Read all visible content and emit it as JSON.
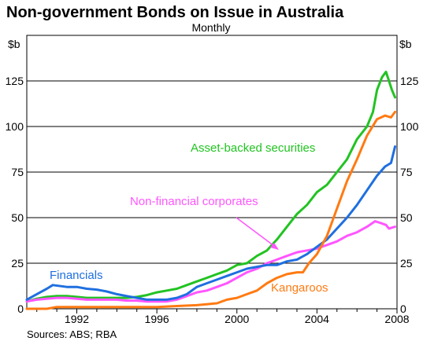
{
  "chart_data": {
    "type": "line",
    "title": "Non-government Bonds on Issue in Australia",
    "subtitle": "Monthly",
    "y_unit_left": "$b",
    "y_unit_right": "$b",
    "ylim": [
      0,
      150
    ],
    "y_ticks": [
      0,
      25,
      50,
      75,
      100,
      125
    ],
    "x_range": [
      1989.5,
      2008
    ],
    "x_ticks": [
      1992,
      1996,
      2000,
      2004,
      2008
    ],
    "grid": true,
    "source": "Sources: ABS; RBA",
    "colors": {
      "Asset-backed securities": "#22c322",
      "Non-financial corporates": "#ff55ff",
      "Financials": "#1f6fe0",
      "Kangaroos": "#ff7a12"
    },
    "series": [
      {
        "name": "Asset-backed securities",
        "points": [
          [
            1989.5,
            4
          ],
          [
            1990.0,
            5.5
          ],
          [
            1990.5,
            6.5
          ],
          [
            1991.0,
            7
          ],
          [
            1991.5,
            7
          ],
          [
            1992.0,
            6.5
          ],
          [
            1992.5,
            6
          ],
          [
            1993.0,
            6
          ],
          [
            1993.5,
            6
          ],
          [
            1994.0,
            6
          ],
          [
            1994.5,
            6
          ],
          [
            1995.0,
            6.5
          ],
          [
            1995.5,
            7.5
          ],
          [
            1996.0,
            9
          ],
          [
            1996.5,
            10
          ],
          [
            1997.0,
            11
          ],
          [
            1997.5,
            13
          ],
          [
            1998.0,
            15
          ],
          [
            1998.5,
            17
          ],
          [
            1999.0,
            19
          ],
          [
            1999.5,
            21
          ],
          [
            2000.0,
            24
          ],
          [
            2000.5,
            25
          ],
          [
            2001.0,
            29
          ],
          [
            2001.5,
            32
          ],
          [
            2002.0,
            38
          ],
          [
            2002.5,
            45
          ],
          [
            2003.0,
            52
          ],
          [
            2003.5,
            57
          ],
          [
            2004.0,
            64
          ],
          [
            2004.5,
            68
          ],
          [
            2005.0,
            75
          ],
          [
            2005.5,
            82
          ],
          [
            2006.0,
            93
          ],
          [
            2006.5,
            100
          ],
          [
            2006.8,
            108
          ],
          [
            2007.0,
            120
          ],
          [
            2007.25,
            127
          ],
          [
            2007.45,
            130
          ],
          [
            2007.6,
            125
          ],
          [
            2007.75,
            120
          ],
          [
            2007.9,
            116
          ]
        ]
      },
      {
        "name": "Non-financial corporates",
        "points": [
          [
            1989.5,
            4
          ],
          [
            1990.0,
            5
          ],
          [
            1990.5,
            5.5
          ],
          [
            1991.0,
            6
          ],
          [
            1991.5,
            6
          ],
          [
            1992.0,
            5.5
          ],
          [
            1992.5,
            5
          ],
          [
            1993.0,
            5
          ],
          [
            1993.5,
            5
          ],
          [
            1994.0,
            5
          ],
          [
            1994.5,
            4.5
          ],
          [
            1995.0,
            4.5
          ],
          [
            1995.5,
            4
          ],
          [
            1996.0,
            4
          ],
          [
            1996.5,
            4
          ],
          [
            1997.0,
            5
          ],
          [
            1997.5,
            7
          ],
          [
            1998.0,
            9
          ],
          [
            1998.5,
            10
          ],
          [
            1999.0,
            12
          ],
          [
            1999.5,
            14
          ],
          [
            2000.0,
            17
          ],
          [
            2000.5,
            20
          ],
          [
            2001.0,
            22
          ],
          [
            2001.5,
            25
          ],
          [
            2002.0,
            27
          ],
          [
            2002.5,
            29
          ],
          [
            2003.0,
            31
          ],
          [
            2003.5,
            32
          ],
          [
            2004.0,
            33
          ],
          [
            2004.5,
            35
          ],
          [
            2005.0,
            37
          ],
          [
            2005.5,
            40
          ],
          [
            2006.0,
            42
          ],
          [
            2006.5,
            45
          ],
          [
            2006.9,
            48
          ],
          [
            2007.2,
            47
          ],
          [
            2007.45,
            46
          ],
          [
            2007.6,
            44
          ],
          [
            2007.9,
            45
          ]
        ]
      },
      {
        "name": "Financials",
        "points": [
          [
            1989.5,
            5
          ],
          [
            1990.0,
            8
          ],
          [
            1990.5,
            11
          ],
          [
            1990.8,
            13
          ],
          [
            1991.5,
            12
          ],
          [
            1992.0,
            12
          ],
          [
            1992.5,
            11
          ],
          [
            1993.0,
            10.5
          ],
          [
            1993.5,
            9.5
          ],
          [
            1994.0,
            8
          ],
          [
            1994.5,
            7
          ],
          [
            1995.0,
            6
          ],
          [
            1995.5,
            5
          ],
          [
            1996.0,
            5
          ],
          [
            1996.5,
            5
          ],
          [
            1997.0,
            6
          ],
          [
            1997.5,
            8
          ],
          [
            1998.0,
            12
          ],
          [
            1998.5,
            14
          ],
          [
            1999.0,
            16
          ],
          [
            1999.5,
            18
          ],
          [
            2000.0,
            20
          ],
          [
            2000.5,
            22
          ],
          [
            2001.0,
            23
          ],
          [
            2001.5,
            24
          ],
          [
            2002.0,
            24
          ],
          [
            2002.5,
            26
          ],
          [
            2003.0,
            27
          ],
          [
            2003.5,
            30
          ],
          [
            2004.0,
            34
          ],
          [
            2004.5,
            38
          ],
          [
            2005.0,
            44
          ],
          [
            2005.5,
            50
          ],
          [
            2006.0,
            57
          ],
          [
            2006.5,
            65
          ],
          [
            2007.0,
            73
          ],
          [
            2007.4,
            78
          ],
          [
            2007.7,
            80
          ],
          [
            2007.9,
            89
          ]
        ]
      },
      {
        "name": "Kangaroos",
        "points": [
          [
            1989.5,
            0
          ],
          [
            1990.5,
            0
          ],
          [
            1991.0,
            1
          ],
          [
            1991.5,
            1
          ],
          [
            1992.0,
            1
          ],
          [
            1993.0,
            1
          ],
          [
            1994.0,
            1
          ],
          [
            1995.0,
            1
          ],
          [
            1996.0,
            1
          ],
          [
            1997.0,
            1.5
          ],
          [
            1998.0,
            2
          ],
          [
            1999.0,
            3
          ],
          [
            1999.5,
            5
          ],
          [
            2000.0,
            6
          ],
          [
            2000.5,
            8
          ],
          [
            2001.0,
            10
          ],
          [
            2001.5,
            14
          ],
          [
            2002.0,
            17
          ],
          [
            2002.5,
            19
          ],
          [
            2003.0,
            20
          ],
          [
            2003.3,
            20
          ],
          [
            2003.6,
            25
          ],
          [
            2004.0,
            30
          ],
          [
            2004.5,
            40
          ],
          [
            2005.0,
            55
          ],
          [
            2005.5,
            70
          ],
          [
            2006.0,
            82
          ],
          [
            2006.5,
            95
          ],
          [
            2007.0,
            104
          ],
          [
            2007.4,
            106
          ],
          [
            2007.7,
            105
          ],
          [
            2007.9,
            108
          ]
        ]
      }
    ],
    "labels": [
      {
        "text": "Asset-backed securities",
        "series": "Asset-backed securities"
      },
      {
        "text": "Non-financial corporates",
        "series": "Non-financial corporates"
      },
      {
        "text": "Financials",
        "series": "Financials"
      },
      {
        "text": "Kangaroos",
        "series": "Kangaroos"
      }
    ]
  }
}
